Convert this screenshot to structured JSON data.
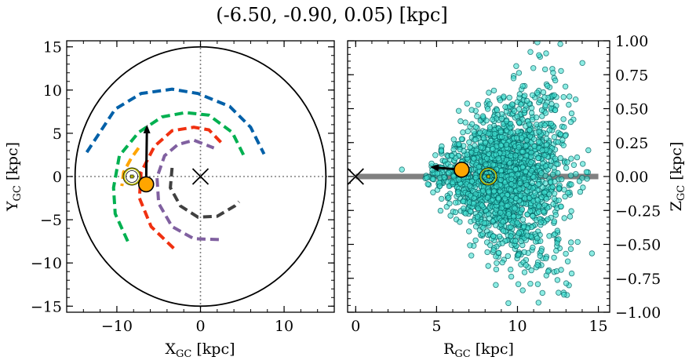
{
  "title": "(-6.50, -0.90, 0.05) [kpc]",
  "chart_data": [
    {
      "type": "line",
      "panel": "left",
      "xlabel": "X",
      "xlabel_sub": "GC",
      "xlabel_unit": " [kpc]",
      "ylabel": "Y",
      "ylabel_sub": "GC",
      "ylabel_unit": " [kpc]",
      "xlim": [
        -16,
        16
      ],
      "ylim": [
        -15.7,
        15.7
      ],
      "xticks": [
        -10,
        0,
        10
      ],
      "xtick_labels": [
        "−10",
        "0",
        "10"
      ],
      "yticks": [
        -15,
        -10,
        -5,
        0,
        5,
        10,
        15
      ],
      "ytick_labels": [
        "−15",
        "−10",
        "−5",
        "0",
        "5",
        "10",
        "15"
      ],
      "x_minor_step": 2,
      "y_minor_step": 1,
      "boundary_circle": {
        "center": [
          0,
          0
        ],
        "radius": 15,
        "color": "#000000"
      },
      "crosshair_lines": {
        "x": 0,
        "y": 0,
        "style": "dotted",
        "color": "#808080"
      },
      "galactic_center_marker": {
        "x": 0,
        "y": 0,
        "symbol": "x"
      },
      "sun_marker": {
        "x": -8.2,
        "y": 0,
        "symbol": "sun",
        "color": "#b8b800"
      },
      "object_marker": {
        "x": -6.5,
        "y": -0.9,
        "color": "#ffa500"
      },
      "velocity_arrow": {
        "from": [
          -6.5,
          -0.9
        ],
        "to": [
          -6.4,
          6.0
        ]
      },
      "arms": [
        {
          "color": "#0060a8",
          "points": [
            [
              -13.6,
              2.8
            ],
            [
              -10.2,
              7.8
            ],
            [
              -7.1,
              9.6
            ],
            [
              -3.4,
              10.1
            ],
            [
              -0.3,
              9.6
            ],
            [
              3.5,
              8.1
            ],
            [
              6.0,
              5.7
            ],
            [
              7.6,
              2.6
            ]
          ]
        },
        {
          "color": "#00b050",
          "points": [
            [
              -8.7,
              -7.5
            ],
            [
              -10.2,
              -4.3
            ],
            [
              -10.4,
              -1.3
            ],
            [
              -9.7,
              2.4
            ],
            [
              -7.4,
              5.1
            ],
            [
              -4.6,
              6.9
            ],
            [
              -1.8,
              7.4
            ],
            [
              1.0,
              7.1
            ],
            [
              3.8,
              5.1
            ],
            [
              5.2,
              2.4
            ]
          ]
        },
        {
          "color": "#f03010",
          "points": [
            [
              -3.2,
              -8.3
            ],
            [
              -5.9,
              -5.8
            ],
            [
              -7.3,
              -2.5
            ],
            [
              -7.1,
              0.5
            ],
            [
              -5.5,
              3.5
            ],
            [
              -3.4,
              5.3
            ],
            [
              -0.8,
              5.7
            ],
            [
              1.0,
              5.4
            ],
            [
              2.7,
              3.7
            ]
          ]
        },
        {
          "color": "#8060a0",
          "points": [
            [
              2.2,
              -7.3
            ],
            [
              -0.8,
              -7.2
            ],
            [
              -3.4,
              -5.8
            ],
            [
              -5.0,
              -3.1
            ],
            [
              -5.2,
              -0.1
            ],
            [
              -4.3,
              2.4
            ],
            [
              -2.7,
              3.7
            ],
            [
              -0.8,
              4.2
            ],
            [
              1.6,
              3.3
            ]
          ]
        },
        {
          "color": "#404040",
          "points": [
            [
              -3.4,
              1.0
            ],
            [
              -3.6,
              -1.3
            ],
            [
              -2.4,
              -3.4
            ],
            [
              -0.3,
              -4.7
            ],
            [
              2.0,
              -4.6
            ],
            [
              4.1,
              -3.4
            ],
            [
              4.6,
              -2.9
            ]
          ]
        },
        {
          "color": "#ffa500",
          "points": [
            [
              -7.4,
              3.3
            ],
            [
              -8.3,
              2.1
            ],
            [
              -9.2,
              0.5
            ],
            [
              -9.4,
              -1.1
            ]
          ]
        }
      ]
    },
    {
      "type": "scatter",
      "panel": "right",
      "xlabel": "R",
      "xlabel_sub": "GC",
      "xlabel_unit": " [kpc]",
      "ylabel": "Z",
      "ylabel_sub": "GC",
      "ylabel_unit": " [kpc]",
      "xlim": [
        -0.5,
        15.7
      ],
      "ylim": [
        -1.0,
        1.0
      ],
      "xticks": [
        0,
        5,
        10,
        15
      ],
      "xtick_labels": [
        "0",
        "5",
        "10",
        "15"
      ],
      "yticks": [
        1.0,
        0.75,
        0.5,
        0.25,
        0.0,
        -0.25,
        -0.5,
        -0.75,
        -1.0
      ],
      "ytick_labels": [
        "1.00",
        "0.75",
        "0.50",
        "0.25",
        "0.00",
        "−0.25",
        "−0.50",
        "−0.75",
        "−1.00"
      ],
      "yaxis_side": "right",
      "x_minor_step": 1,
      "y_minor_step": 0.05,
      "point_color": "#40e0d0",
      "point_edge": "#006060",
      "point_count_approx": 2000,
      "disk_plane_line": {
        "x": [
          0,
          15
        ],
        "y": 0,
        "color": "#808080"
      },
      "galactic_center_marker": {
        "x": 0,
        "y": 0,
        "symbol": "x"
      },
      "sun_marker": {
        "x": 8.2,
        "y": 0,
        "symbol": "sun",
        "color": "#b8b800"
      },
      "object_marker": {
        "x": 6.55,
        "y": 0.05,
        "color": "#ffa500"
      },
      "velocity_arrow": {
        "from": [
          6.55,
          0.05
        ],
        "to": [
          4.6,
          0.07
        ]
      }
    }
  ]
}
